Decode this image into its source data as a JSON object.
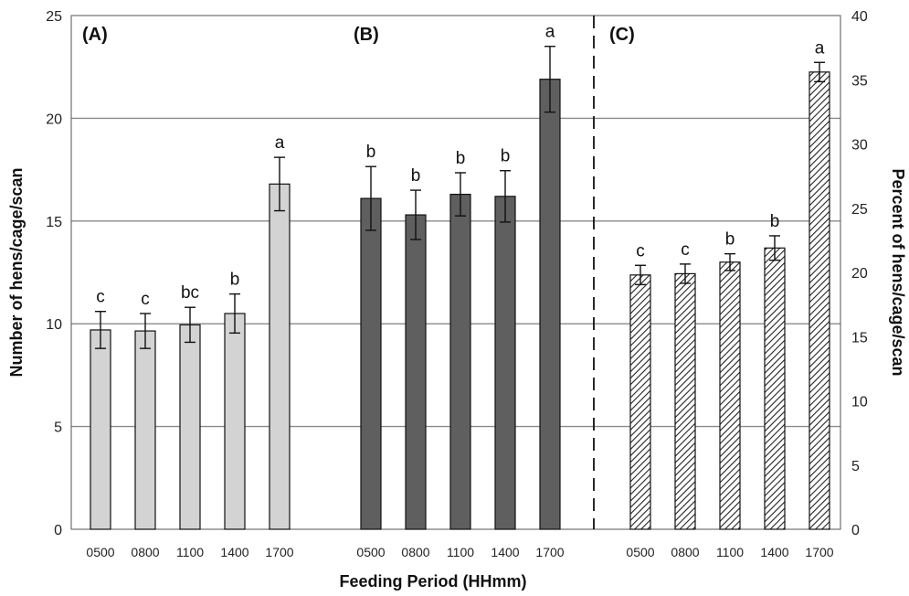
{
  "chart_data": {
    "type": "bar",
    "xlabel": "Feeding Period (HHmm)",
    "ylabel_left": "Number of hens/cage/scan",
    "ylabel_right": "Percent of hens/cage/scan",
    "ylim_left": [
      0,
      25
    ],
    "yticks_left": [
      "0",
      "5",
      "10",
      "15",
      "20",
      "25"
    ],
    "ylim_right": [
      0,
      40
    ],
    "yticks_right": [
      "0",
      "5",
      "10",
      "15",
      "20",
      "25",
      "30",
      "35",
      "40"
    ],
    "grid": true,
    "panels": [
      {
        "label": "(A)",
        "axis": "left",
        "fill": "#d3d3d3",
        "pattern": "solid",
        "categories": [
          "0500",
          "0800",
          "1100",
          "1400",
          "1700"
        ],
        "values": [
          9.7,
          9.65,
          9.95,
          10.5,
          16.8
        ],
        "errors": [
          0.9,
          0.85,
          0.85,
          0.95,
          1.3
        ],
        "letters": [
          "c",
          "c",
          "bc",
          "b",
          "a"
        ]
      },
      {
        "label": "(B)",
        "axis": "left",
        "fill": "#5f5f5f",
        "pattern": "solid",
        "categories": [
          "0500",
          "0800",
          "1100",
          "1400",
          "1700"
        ],
        "values": [
          16.1,
          15.3,
          16.3,
          16.2,
          21.9
        ],
        "errors": [
          1.55,
          1.2,
          1.05,
          1.25,
          1.6
        ],
        "letters": [
          "b",
          "b",
          "b",
          "b",
          "a"
        ]
      },
      {
        "label": "(C)",
        "axis": "right",
        "fill": "#ffffff",
        "pattern": "hatched",
        "categories": [
          "0500",
          "0800",
          "1100",
          "1400",
          "1700"
        ],
        "values": [
          19.8,
          19.9,
          20.8,
          21.9,
          35.6
        ],
        "errors": [
          0.75,
          0.75,
          0.65,
          0.95,
          0.75
        ],
        "letters": [
          "c",
          "c",
          "b",
          "b",
          "a"
        ]
      }
    ]
  }
}
